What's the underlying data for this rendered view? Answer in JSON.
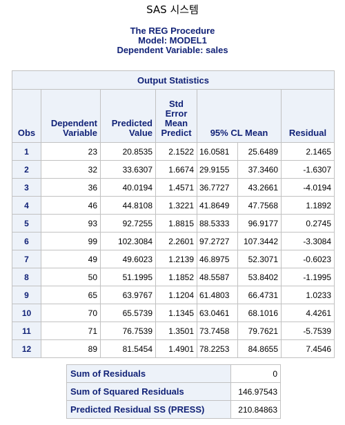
{
  "window": {
    "title": "SAS 시스템"
  },
  "procedure": {
    "name": "The REG Procedure",
    "model": "Model: MODEL1",
    "dependent": "Dependent Variable: sales"
  },
  "output_statistics": {
    "caption": "Output Statistics",
    "headers": {
      "obs": "Obs",
      "dependent": [
        "Dependent",
        "Variable"
      ],
      "predicted": [
        "Predicted",
        "Value"
      ],
      "std_error": [
        "Std",
        "Error",
        "Mean",
        "Predict"
      ],
      "cl_mean": "95% CL Mean",
      "residual": "Residual"
    },
    "rows": [
      [
        "1",
        "23",
        "20.8535",
        "2.1522",
        "16.0581",
        "25.6489",
        "2.1465"
      ],
      [
        "2",
        "32",
        "33.6307",
        "1.6674",
        "29.9155",
        "37.3460",
        "-1.6307"
      ],
      [
        "3",
        "36",
        "40.0194",
        "1.4571",
        "36.7727",
        "43.2661",
        "-4.0194"
      ],
      [
        "4",
        "46",
        "44.8108",
        "1.3221",
        "41.8649",
        "47.7568",
        "1.1892"
      ],
      [
        "5",
        "93",
        "92.7255",
        "1.8815",
        "88.5333",
        "96.9177",
        "0.2745"
      ],
      [
        "6",
        "99",
        "102.3084",
        "2.2601",
        "97.2727",
        "107.3442",
        "-3.3084"
      ],
      [
        "7",
        "49",
        "49.6023",
        "1.2139",
        "46.8975",
        "52.3071",
        "-0.6023"
      ],
      [
        "8",
        "50",
        "51.1995",
        "1.1852",
        "48.5587",
        "53.8402",
        "-1.1995"
      ],
      [
        "9",
        "65",
        "63.9767",
        "1.1204",
        "61.4803",
        "66.4731",
        "1.0233"
      ],
      [
        "10",
        "70",
        "65.5739",
        "1.1345",
        "63.0461",
        "68.1016",
        "4.4261"
      ],
      [
        "11",
        "71",
        "76.7539",
        "1.3501",
        "73.7458",
        "79.7621",
        "-5.7539"
      ],
      [
        "12",
        "89",
        "81.5454",
        "1.4901",
        "78.2253",
        "84.8655",
        "7.4546"
      ]
    ]
  },
  "summary": [
    {
      "label": "Sum of Residuals",
      "value": "0"
    },
    {
      "label": "Sum of Squared Residuals",
      "value": "146.97543"
    },
    {
      "label": "Predicted Residual SS (PRESS)",
      "value": "210.84863"
    }
  ]
}
